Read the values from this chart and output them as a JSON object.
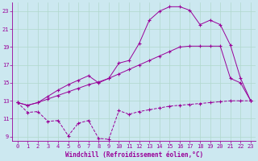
{
  "xlabel": "Windchill (Refroidissement éolien,°C)",
  "background_color": "#cce8f0",
  "grid_color": "#b0d8cc",
  "line_color": "#990099",
  "xlim": [
    -0.5,
    23.5
  ],
  "ylim": [
    8.5,
    24.0
  ],
  "yticks": [
    9,
    11,
    13,
    15,
    17,
    19,
    21,
    23
  ],
  "xticks": [
    0,
    1,
    2,
    3,
    4,
    5,
    6,
    7,
    8,
    9,
    10,
    11,
    12,
    13,
    14,
    15,
    16,
    17,
    18,
    19,
    20,
    21,
    22,
    23
  ],
  "line1_x": [
    0,
    1,
    2,
    3,
    4,
    5,
    6,
    7,
    8,
    9,
    10,
    11,
    12,
    13,
    14,
    15,
    16,
    17,
    18,
    19,
    20,
    21,
    22,
    23
  ],
  "line1_y": [
    12.8,
    11.7,
    11.8,
    10.7,
    10.8,
    9.1,
    10.5,
    10.8,
    8.8,
    8.7,
    11.9,
    11.5,
    11.8,
    12.0,
    12.2,
    12.4,
    12.5,
    12.6,
    12.7,
    12.8,
    12.9,
    13.0,
    13.0,
    13.0
  ],
  "line2_x": [
    0,
    1,
    2,
    3,
    4,
    5,
    6,
    7,
    8,
    9,
    10,
    11,
    12,
    13,
    14,
    15,
    16,
    17,
    18,
    19,
    20,
    21,
    22,
    23
  ],
  "line2_y": [
    12.8,
    12.5,
    12.8,
    13.2,
    13.6,
    14.0,
    14.4,
    14.8,
    15.1,
    15.5,
    16.0,
    16.5,
    17.0,
    17.5,
    18.0,
    18.5,
    19.0,
    19.1,
    19.1,
    19.1,
    19.1,
    15.5,
    15.0,
    13.0
  ],
  "line3_x": [
    0,
    1,
    2,
    3,
    4,
    5,
    6,
    7,
    8,
    9,
    10,
    11,
    12,
    13,
    14,
    15,
    16,
    17,
    18,
    19,
    20,
    21,
    22,
    23
  ],
  "line3_y": [
    12.8,
    12.5,
    12.8,
    13.5,
    14.2,
    14.8,
    15.3,
    15.8,
    15.0,
    15.5,
    17.2,
    17.5,
    19.4,
    22.0,
    23.0,
    23.5,
    23.5,
    23.1,
    21.5,
    22.0,
    21.5,
    19.2,
    15.5,
    13.0
  ]
}
